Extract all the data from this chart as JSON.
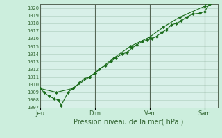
{
  "title": "",
  "xlabel": "Pression niveau de la mer( hPa )",
  "bg_color": "#cceedd",
  "plot_bg": "#d8f0e8",
  "grid_color": "#aaccbb",
  "line_color": "#1a6b1a",
  "axis_color": "#556655",
  "text_color": "#336633",
  "ylim": [
    1007,
    1020.5
  ],
  "yticks": [
    1007,
    1008,
    1009,
    1010,
    1011,
    1012,
    1013,
    1014,
    1015,
    1016,
    1017,
    1018,
    1019,
    1020
  ],
  "xtick_labels": [
    "Jeu",
    "Dim",
    "Ven",
    "Sam"
  ],
  "xtick_pos": [
    0.0,
    0.333,
    0.667,
    1.0
  ],
  "vline_pos": [
    0.0,
    0.333,
    0.667,
    1.0
  ],
  "series1_x": [
    0.0,
    0.025,
    0.055,
    0.085,
    0.11,
    0.13,
    0.17,
    0.2,
    0.24,
    0.27,
    0.3,
    0.333,
    0.36,
    0.4,
    0.43,
    0.46,
    0.5,
    0.53,
    0.56,
    0.59,
    0.62,
    0.65,
    0.68,
    0.71,
    0.74,
    0.77,
    0.8,
    0.83,
    0.86,
    0.89,
    0.93,
    0.97,
    1.0,
    1.03
  ],
  "series1_y": [
    1009.5,
    1009.0,
    1008.5,
    1008.2,
    1008.0,
    1007.3,
    1009.0,
    1009.5,
    1010.2,
    1010.8,
    1011.0,
    1011.5,
    1012.0,
    1012.5,
    1013.0,
    1013.5,
    1014.0,
    1014.2,
    1014.8,
    1015.2,
    1015.6,
    1015.8,
    1016.0,
    1016.3,
    1016.8,
    1017.2,
    1017.8,
    1018.0,
    1018.3,
    1018.8,
    1019.2,
    1019.3,
    1019.5,
    1020.5
  ],
  "series2_x": [
    0.0,
    0.1,
    0.2,
    0.333,
    0.45,
    0.55,
    0.667,
    0.75,
    0.85,
    1.0,
    1.03
  ],
  "series2_y": [
    1009.5,
    1009.0,
    1009.5,
    1011.5,
    1013.5,
    1015.0,
    1016.2,
    1017.5,
    1018.8,
    1020.2,
    1021.0
  ],
  "xmin": 0.0,
  "xmax": 1.08
}
